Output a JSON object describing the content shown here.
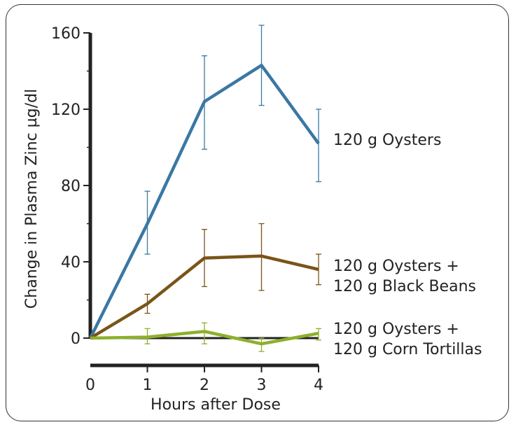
{
  "chart_data": {
    "type": "line",
    "xlabel": "Hours after Dose",
    "ylabel": "Change in Plasma Zinc µg/dl",
    "x": [
      0,
      1,
      2,
      3,
      4
    ],
    "xlim": [
      0,
      4
    ],
    "ylim": [
      0,
      160
    ],
    "yticks": [
      0,
      40,
      80,
      120,
      160
    ],
    "xticks": [
      0,
      1,
      2,
      3,
      4
    ],
    "grid": false,
    "legend": "direct labels at right end of each line",
    "series": [
      {
        "name": "120 g Oysters",
        "label_lines": [
          "120 g Oysters"
        ],
        "color": "#3a78a3",
        "values": [
          0,
          60,
          124,
          143,
          102
        ],
        "err_low": [
          null,
          44,
          99,
          122,
          82
        ],
        "err_high": [
          null,
          77,
          148,
          164,
          120
        ]
      },
      {
        "name": "120 g Oysters + 120 g Black Beans",
        "label_lines": [
          "120 g Oysters +",
          "120 g Black Beans"
        ],
        "color": "#7a5418",
        "values": [
          0,
          18,
          42,
          43,
          36
        ],
        "err_low": [
          null,
          13,
          27,
          25,
          28
        ],
        "err_high": [
          null,
          23,
          57,
          60,
          44
        ]
      },
      {
        "name": "120 g Oysters + 120 g Corn Tortillas",
        "label_lines": [
          "120 g Oysters +",
          "120 g Corn Tortillas"
        ],
        "color": "#8db02c",
        "values": [
          0,
          0.5,
          3.5,
          -3,
          2.5
        ],
        "err_low": [
          null,
          -3,
          -3,
          -7,
          -1
        ],
        "err_high": [
          null,
          5,
          8,
          0,
          5
        ]
      }
    ]
  }
}
